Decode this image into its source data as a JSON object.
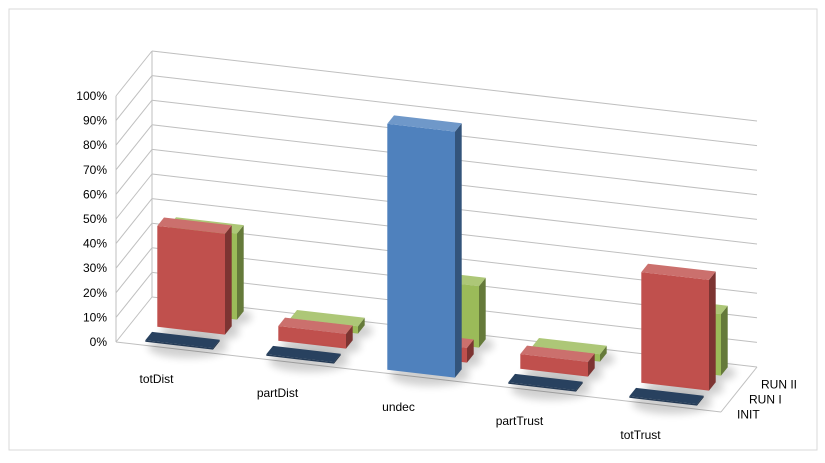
{
  "chart_data": {
    "type": "bar",
    "subtype": "3d-column",
    "title": "",
    "xlabel": "",
    "ylabel": "",
    "ylim": [
      0,
      100
    ],
    "y_ticks": [
      "0%",
      "10%",
      "20%",
      "30%",
      "40%",
      "50%",
      "60%",
      "70%",
      "80%",
      "90%",
      "100%"
    ],
    "grid": true,
    "legend": "none",
    "categories": [
      "totDist",
      "partDist",
      "undec",
      "partTrust",
      "totTrust"
    ],
    "series": [
      {
        "name": "INIT",
        "color": "#4f81bd",
        "values": [
          0,
          0,
          100,
          0,
          0
        ]
      },
      {
        "name": "RUN I",
        "color": "#c0504d",
        "values": [
          41,
          6,
          6,
          6,
          45
        ]
      },
      {
        "name": "RUN II",
        "color": "#9bbb59",
        "values": [
          35,
          3,
          25,
          3,
          25
        ]
      }
    ]
  }
}
